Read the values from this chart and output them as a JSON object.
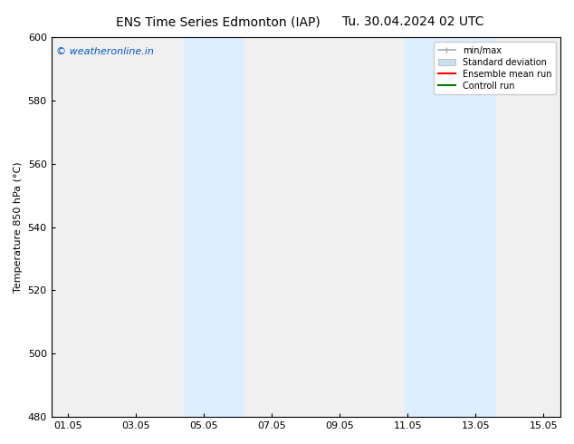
{
  "title_left": "ENS Time Series Edmonton (IAP)",
  "title_right": "Tu. 30.04.2024 02 UTC",
  "ylabel": "Temperature 850 hPa (°C)",
  "ylim": [
    480,
    600
  ],
  "yticks": [
    480,
    500,
    520,
    540,
    560,
    580,
    600
  ],
  "xtick_labels": [
    "01.05",
    "03.05",
    "05.05",
    "07.05",
    "09.05",
    "11.05",
    "13.05",
    "15.05"
  ],
  "xtick_positions": [
    1,
    3,
    5,
    7,
    9,
    11,
    13,
    15
  ],
  "x_min": 0.5,
  "x_max": 15.5,
  "bg_color": "#ffffff",
  "plot_bg_color": "#f0f0f0",
  "shaded_regions": [
    {
      "x_start": 4.4,
      "x_end": 6.2
    },
    {
      "x_start": 10.9,
      "x_end": 13.6
    }
  ],
  "shaded_color": "#ddeeff",
  "watermark_text": "© weatheronline.in",
  "watermark_color": "#0055cc",
  "watermark_fontsize": 8,
  "legend_entries": [
    {
      "label": "min/max",
      "color": "#aaaaaa",
      "lw": 1.2,
      "style": "solid"
    },
    {
      "label": "Standard deviation",
      "color": "#c8dff0",
      "lw": 6,
      "style": "solid"
    },
    {
      "label": "Ensemble mean run",
      "color": "#ff0000",
      "lw": 1.5,
      "style": "solid"
    },
    {
      "label": "Controll run",
      "color": "#007700",
      "lw": 1.5,
      "style": "solid"
    }
  ],
  "title_fontsize": 10,
  "axis_fontsize": 8,
  "tick_fontsize": 8,
  "legend_fontsize": 7
}
